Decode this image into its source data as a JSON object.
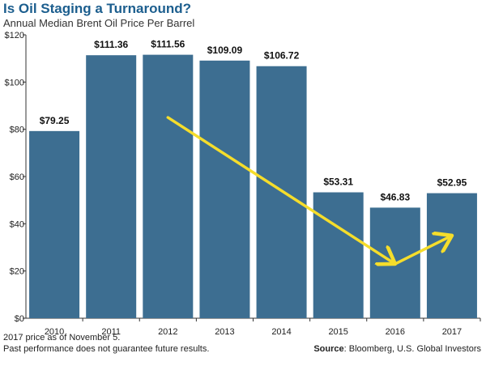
{
  "chart_data": {
    "type": "bar",
    "title": "Is Oil Staging a Turnaround?",
    "subtitle": "Annual Median Brent Oil Price Per Barrel",
    "categories": [
      "2010",
      "2011",
      "2012",
      "2013",
      "2014",
      "2015",
      "2016",
      "2017"
    ],
    "values": [
      79.25,
      111.36,
      111.56,
      109.09,
      106.72,
      53.31,
      46.83,
      52.95
    ],
    "data_labels": [
      "$79.25",
      "$111.36",
      "$111.56",
      "$109.09",
      "$106.72",
      "$53.31",
      "$46.83",
      "$52.95"
    ],
    "y_ticks": [
      0,
      20,
      40,
      60,
      80,
      100,
      120
    ],
    "y_tick_labels": [
      "$0",
      "$20",
      "$40",
      "$60",
      "$80",
      "$100",
      "$120"
    ],
    "ylim": [
      0,
      120
    ],
    "xlabel": "",
    "ylabel": "",
    "grid": false,
    "legend": "none",
    "bar_color": "#3d6e91",
    "annotation_color": "#f5dd2b",
    "annotations": [
      {
        "type": "arrow",
        "from": {
          "x": "2012",
          "y": 85
        },
        "to": {
          "x": "2016",
          "y": 23
        }
      },
      {
        "type": "arrow",
        "from": {
          "x": "2016",
          "y": 23
        },
        "to": {
          "x": "2017",
          "y": 35
        }
      }
    ]
  },
  "footer": {
    "note1": "2017 price as of November 5.",
    "note2": "Past performance does not guarantee future results.",
    "source_label": "Source",
    "source_text": ": Bloomberg, U.S. Global Investors"
  },
  "colors": {
    "title": "#1c5e8e",
    "axis": "#333333"
  }
}
